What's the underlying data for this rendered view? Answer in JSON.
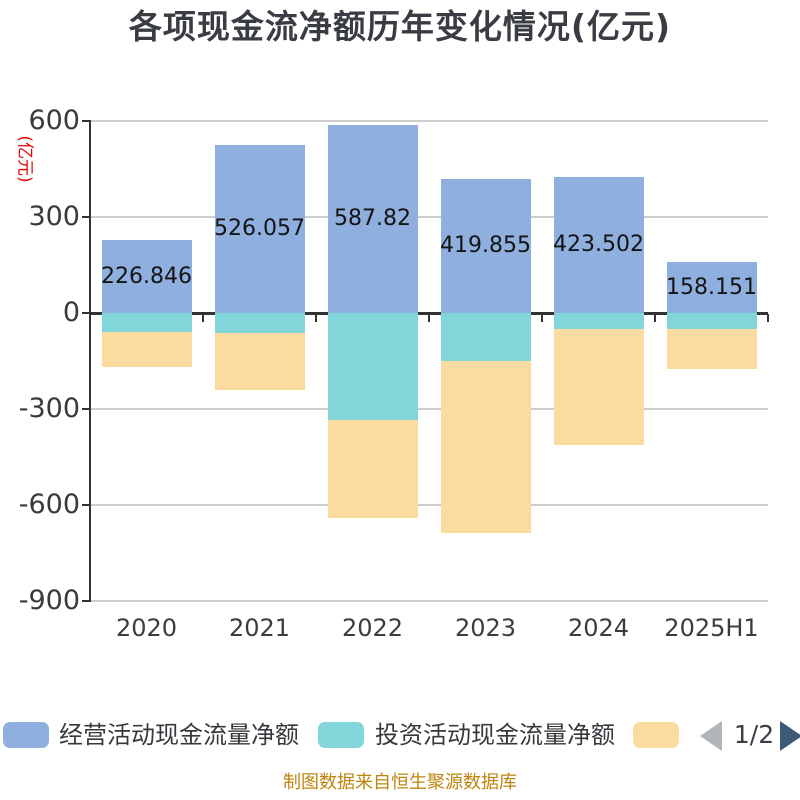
{
  "title": "各项现金流净额历年变化情况(亿元)",
  "y_axis_unit_label": "(亿元)",
  "source_note": "制图数据来自恒生聚源数据库",
  "pagination": {
    "current": "1/2"
  },
  "legend": [
    {
      "label": "经营活动现金流量净额",
      "color": "#8fafdf"
    },
    {
      "label": "投资活动现金流量净额",
      "color": "#82d6da"
    },
    {
      "label": "",
      "color": "#fcdba0"
    }
  ],
  "chart_data": {
    "type": "bar",
    "stacked": true,
    "title": "各项现金流净额历年变化情况(亿元)",
    "ylabel": "(亿元)",
    "categories": [
      "2020",
      "2021",
      "2022",
      "2023",
      "2024",
      "2025H1"
    ],
    "series": [
      {
        "name": "经营活动现金流量净额",
        "color": "#8fafdf",
        "values": [
          226.846,
          526.057,
          587.82,
          419.855,
          423.502,
          158.151
        ]
      },
      {
        "name": "投资活动现金流量净额",
        "color": "#82d6da",
        "values": [
          -59,
          -62,
          -335,
          -150,
          -50,
          -50
        ],
        "note": "estimated from gridlines, not labeled on chart"
      },
      {
        "name": "",
        "color": "#fcdba0",
        "values": [
          -110,
          -179,
          -307,
          -537,
          -363,
          -125
        ],
        "note": "estimated from gridlines, series label not visible (legend page 2)"
      }
    ],
    "bar_labels": [
      "226.846",
      "526.057",
      "587.82",
      "419.855",
      "423.502",
      "158.151"
    ],
    "y_ticks": [
      600,
      300,
      0,
      -300,
      -600,
      -900
    ],
    "ylim": [
      -900,
      600
    ],
    "grid": true,
    "legend_position": "bottom"
  },
  "colors": {
    "axis_line": "#333333",
    "grid_line": "#cdcdcd",
    "zero_line": "#333333",
    "y_tick_label": "#3a3a3a",
    "x_tick_label": "#3c3c3c",
    "value_label": "#141414",
    "title_text": "#393c42",
    "unit_label": "#e60505",
    "source_text": "#bd850c",
    "page_text": "#3a3f45",
    "page_prev_arrow": "#b2b6ba",
    "page_next_arrow": "#3c5a77",
    "background": "#ffffff"
  }
}
